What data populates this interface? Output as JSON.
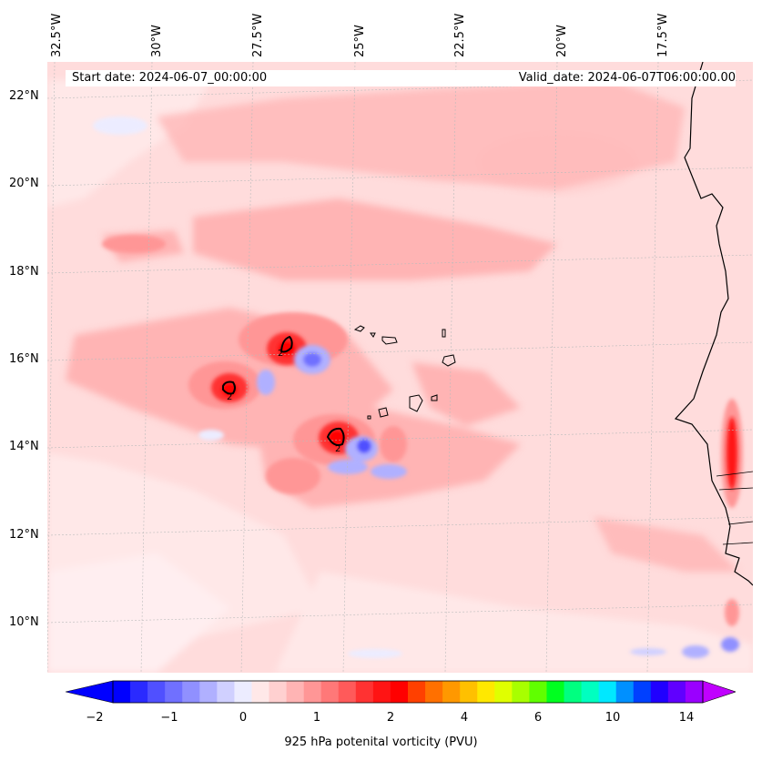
{
  "header": {
    "start_date": "Start date: 2024-06-07_00:00:00",
    "valid_date": "Valid_date: 2024-06-07T06:00:00.00"
  },
  "axes": {
    "lon_labels": [
      "32.5°W",
      "30°W",
      "27.5°W",
      "25°W",
      "22.5°W",
      "20°W",
      "17.5°W"
    ],
    "lat_labels": [
      "22°N",
      "20°N",
      "18°N",
      "16°N",
      "14°N",
      "12°N",
      "10°N"
    ]
  },
  "contour_labels": [
    "2",
    "2",
    "2"
  ],
  "colorbar": {
    "ticks": [
      "−2",
      "−1",
      "0",
      "1",
      "2",
      "4",
      "6",
      "10",
      "14"
    ],
    "label": "925 hPa potenital vorticity (PVU)",
    "colors": [
      "#0000ff",
      "#2a2aff",
      "#5050ff",
      "#7070ff",
      "#9090ff",
      "#b0b0ff",
      "#d0d0ff",
      "#ececff",
      "#ffe8e8",
      "#ffd0d0",
      "#ffb4b4",
      "#ff9696",
      "#ff7878",
      "#ff5a5a",
      "#ff3232",
      "#ff1414",
      "#ff0000",
      "#ff4000",
      "#ff7000",
      "#ff9800",
      "#ffc000",
      "#ffe800",
      "#e0ff00",
      "#a8ff00",
      "#60ff00",
      "#00ff20",
      "#00ff80",
      "#00ffc0",
      "#00e8ff",
      "#0090ff",
      "#0040ff",
      "#2000ff",
      "#6000ff",
      "#9a00ff"
    ]
  }
}
